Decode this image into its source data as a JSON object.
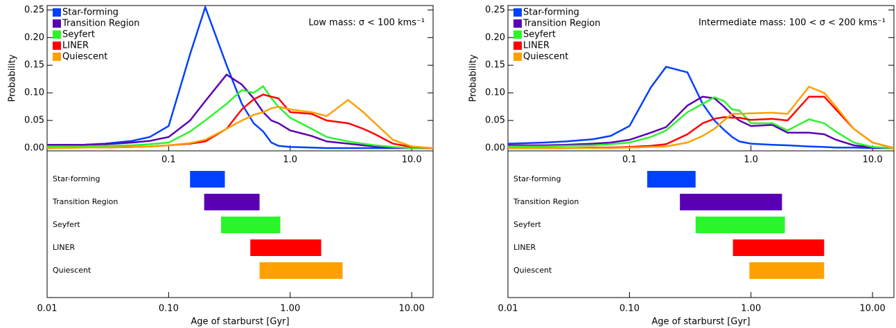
{
  "chart_data": [
    {
      "type": "line",
      "log_x": true,
      "ylabel": "Probability",
      "annotation": "Low mass: σ < 100 kms⁻¹",
      "legend": "upper left",
      "x": [
        0.01,
        0.02,
        0.03,
        0.05,
        0.07,
        0.1,
        0.15,
        0.2,
        0.3,
        0.4,
        0.5,
        0.6,
        0.7,
        0.8,
        1.0,
        1.5,
        2,
        3,
        4,
        5,
        7,
        10,
        15
      ],
      "series": [
        {
          "name": "Star-forming",
          "color": "#0040ff",
          "values": [
            0.005,
            0.006,
            0.008,
            0.013,
            0.02,
            0.04,
            0.17,
            0.255,
            0.15,
            0.08,
            0.045,
            0.03,
            0.01,
            0.004,
            0.002,
            0.001,
            0,
            0,
            0,
            0,
            0,
            0,
            0
          ]
        },
        {
          "name": "Transition Region",
          "color": "#5a00b4",
          "values": [
            0.006,
            0.006,
            0.007,
            0.01,
            0.013,
            0.02,
            0.05,
            0.085,
            0.133,
            0.115,
            0.09,
            0.065,
            0.05,
            0.045,
            0.032,
            0.022,
            0.012,
            0.008,
            0.005,
            0.003,
            0.001,
            0,
            0
          ]
        },
        {
          "name": "Seyfert",
          "color": "#2af52a",
          "values": [
            0.003,
            0.003,
            0.004,
            0.005,
            0.007,
            0.01,
            0.03,
            0.05,
            0.08,
            0.105,
            0.1,
            0.112,
            0.09,
            0.075,
            0.055,
            0.035,
            0.02,
            0.012,
            0.008,
            0.005,
            0.002,
            0,
            0
          ]
        },
        {
          "name": "LINER",
          "color": "#ff0000",
          "values": [
            0,
            0.001,
            0.001,
            0.002,
            0.003,
            0.005,
            0.008,
            0.012,
            0.035,
            0.07,
            0.088,
            0.097,
            0.093,
            0.09,
            0.065,
            0.062,
            0.05,
            0.045,
            0.035,
            0.025,
            0.008,
            0.002,
            0
          ]
        },
        {
          "name": "Quiescent",
          "color": "#ffa000",
          "values": [
            0,
            0.001,
            0.001,
            0.002,
            0.003,
            0.005,
            0.009,
            0.015,
            0.035,
            0.05,
            0.06,
            0.065,
            0.072,
            0.075,
            0.07,
            0.065,
            0.058,
            0.087,
            0.065,
            0.045,
            0.015,
            0.003,
            0
          ]
        }
      ],
      "xlim": [
        0.01,
        15
      ],
      "xticks": [
        0.1,
        {
          "value": 1,
          "label": "1.0"
        },
        {
          "value": 10,
          "label": "10.0"
        }
      ],
      "ylim": [
        -0.005,
        0.258
      ],
      "yticks": [
        {
          "value": 0,
          "label": "0.00"
        },
        0.05,
        {
          "value": 0.1,
          "label": "0.10"
        },
        0.15,
        {
          "value": 0.2,
          "label": "0.20"
        },
        0.25
      ]
    },
    {
      "type": "range_bar",
      "log_x": true,
      "xlabel": "Age of starburst [Gyr]",
      "categories": [
        "Star-forming",
        "Transition Region",
        "Seyfert",
        "LINER",
        "Quiescent"
      ],
      "colors": [
        "#0040ff",
        "#5a00b4",
        "#2af52a",
        "#ff0000",
        "#ffa000"
      ],
      "values": [
        [
          0.15,
          0.29
        ],
        [
          0.196,
          0.56
        ],
        [
          0.27,
          0.83
        ],
        [
          0.47,
          1.8
        ],
        [
          0.56,
          2.7
        ]
      ],
      "xlim": [
        0.01,
        15
      ],
      "xticks": [
        0.01,
        {
          "value": 0.1,
          "label": "0.10"
        },
        {
          "value": 1,
          "label": "1.00"
        },
        {
          "value": 10,
          "label": "10.00"
        }
      ]
    },
    {
      "type": "line",
      "log_x": true,
      "ylabel": "Probability",
      "annotation": "Intermediate mass: 100 < σ < 200 kms⁻¹",
      "legend": "upper left",
      "x": [
        0.01,
        0.02,
        0.03,
        0.05,
        0.07,
        0.1,
        0.15,
        0.2,
        0.3,
        0.4,
        0.5,
        0.6,
        0.7,
        0.8,
        1.0,
        1.5,
        2,
        3,
        4,
        5,
        7,
        10,
        15
      ],
      "series": [
        {
          "name": "Star-forming",
          "color": "#0040ff",
          "values": [
            0.008,
            0.01,
            0.012,
            0.016,
            0.022,
            0.04,
            0.11,
            0.147,
            0.137,
            0.08,
            0.05,
            0.033,
            0.02,
            0.012,
            0.008,
            0.006,
            0.005,
            0.003,
            0.002,
            0.001,
            0.001,
            0,
            0
          ]
        },
        {
          "name": "Transition Region",
          "color": "#5a00b4",
          "values": [
            0.005,
            0.005,
            0.006,
            0.008,
            0.01,
            0.015,
            0.028,
            0.038,
            0.077,
            0.093,
            0.09,
            0.075,
            0.06,
            0.05,
            0.04,
            0.042,
            0.028,
            0.028,
            0.025,
            0.015,
            0.005,
            0.001,
            0
          ]
        },
        {
          "name": "Seyfert",
          "color": "#2af52a",
          "values": [
            0.003,
            0.003,
            0.004,
            0.005,
            0.007,
            0.01,
            0.02,
            0.032,
            0.065,
            0.08,
            0.092,
            0.085,
            0.07,
            0.068,
            0.045,
            0.045,
            0.032,
            0.052,
            0.045,
            0.03,
            0.01,
            0.002,
            0
          ]
        },
        {
          "name": "LINER",
          "color": "#ff0000",
          "values": [
            0,
            0,
            0,
            0.001,
            0.001,
            0.002,
            0.004,
            0.007,
            0.025,
            0.045,
            0.053,
            0.056,
            0.055,
            0.055,
            0.051,
            0.053,
            0.05,
            0.093,
            0.093,
            0.07,
            0.035,
            0.01,
            0
          ]
        },
        {
          "name": "Quiescent",
          "color": "#ffa000",
          "values": [
            0,
            0,
            0,
            0,
            0,
            0.001,
            0.002,
            0.003,
            0.01,
            0.022,
            0.035,
            0.05,
            0.062,
            0.062,
            0.063,
            0.064,
            0.062,
            0.111,
            0.1,
            0.075,
            0.035,
            0.01,
            0
          ]
        }
      ],
      "xlim": [
        0.01,
        15
      ],
      "xticks": [
        0.1,
        {
          "value": 1,
          "label": "1.0"
        },
        {
          "value": 10,
          "label": "10.0"
        }
      ],
      "ylim": [
        -0.005,
        0.258
      ],
      "yticks": [
        {
          "value": 0,
          "label": "0.00"
        },
        0.05,
        {
          "value": 0.1,
          "label": "0.10"
        },
        0.15,
        {
          "value": 0.2,
          "label": "0.20"
        },
        0.25
      ]
    },
    {
      "type": "range_bar",
      "log_x": true,
      "xlabel": "Age of starburst [Gyr]",
      "categories": [
        "Star-forming",
        "Transition Region",
        "Seyfert",
        "LINER",
        "Quiescent"
      ],
      "colors": [
        "#0040ff",
        "#5a00b4",
        "#2af52a",
        "#ff0000",
        "#ffa000"
      ],
      "values": [
        [
          0.14,
          0.35
        ],
        [
          0.26,
          1.8
        ],
        [
          0.35,
          1.9
        ],
        [
          0.71,
          4.0
        ],
        [
          0.97,
          4.0
        ]
      ],
      "xlim": [
        0.01,
        15
      ],
      "xticks": [
        0.01,
        {
          "value": 0.1,
          "label": "0.10"
        },
        {
          "value": 1,
          "label": "1.00"
        },
        {
          "value": 10,
          "label": "10.00"
        }
      ]
    }
  ]
}
